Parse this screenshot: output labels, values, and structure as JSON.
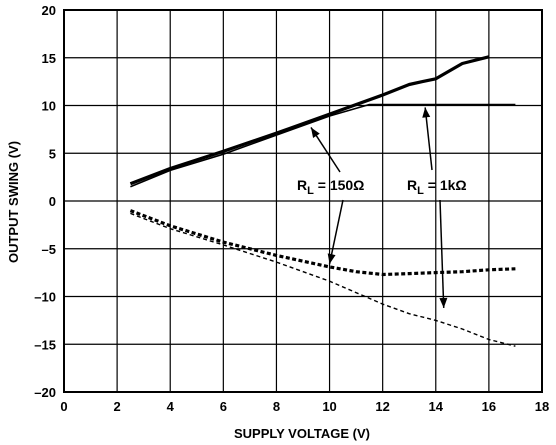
{
  "chart_data": {
    "type": "line",
    "title": "",
    "xlabel": "SUPPLY VOLTAGE (V)",
    "ylabel": "OUTPUT SWING (V)",
    "xlim": [
      0,
      18
    ],
    "ylim": [
      -20,
      20
    ],
    "xticks": [
      0,
      2,
      4,
      6,
      8,
      10,
      12,
      14,
      16,
      18
    ],
    "yticks": [
      -20,
      -15,
      -10,
      -5,
      0,
      5,
      10,
      15,
      20
    ],
    "grid": true,
    "series": [
      {
        "label_ref": "rl_1k",
        "style": "solid-thick",
        "x": [
          2.5,
          4,
          6,
          8,
          10,
          12,
          13,
          13.5,
          14,
          15,
          16
        ],
        "y": [
          1.8,
          3.4,
          5.2,
          7.1,
          9.1,
          11.1,
          12.2,
          12.5,
          12.8,
          14.4,
          15.1
        ]
      },
      {
        "label_ref": "rl_150",
        "style": "solid-thin",
        "x": [
          2.5,
          4,
          6,
          8,
          10,
          11.5,
          12,
          13,
          14,
          15,
          16,
          17
        ],
        "y": [
          1.5,
          3.2,
          4.9,
          6.9,
          8.9,
          10.1,
          10.1,
          10.1,
          10.1,
          10.1,
          10.1,
          10.1
        ]
      },
      {
        "label_ref": "rl_150",
        "style": "dashed-thick",
        "x": [
          2.5,
          4,
          6,
          8,
          10,
          11,
          12,
          13,
          14,
          15,
          16,
          17
        ],
        "y": [
          -1.0,
          -2.6,
          -4.3,
          -5.7,
          -6.9,
          -7.4,
          -7.7,
          -7.6,
          -7.5,
          -7.4,
          -7.2,
          -7.1
        ]
      },
      {
        "label_ref": "rl_1k",
        "style": "dashed-thin",
        "x": [
          2.5,
          4,
          6,
          8,
          10,
          12,
          13,
          14,
          15,
          16,
          17
        ],
        "y": [
          -1.3,
          -2.9,
          -4.6,
          -6.4,
          -8.4,
          -10.8,
          -11.8,
          -12.5,
          -13.4,
          -14.5,
          -15.2
        ]
      }
    ],
    "annotations": {
      "rl_150": {
        "main": "R",
        "sub": "L",
        "rest": " = 150Ω"
      },
      "rl_1k": {
        "main": "R",
        "sub": "L",
        "rest": " = 1kΩ"
      }
    }
  }
}
